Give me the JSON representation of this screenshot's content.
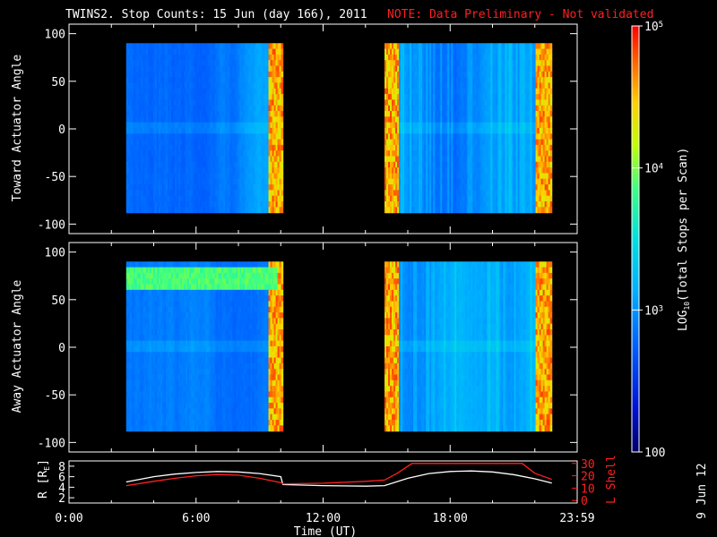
{
  "title": "TWINS2. Stop Counts: 15 Jun (day 166), 2011",
  "note": "NOTE: Data Preliminary - Not validated",
  "date_stamp": "9 Jun 12",
  "colors": {
    "note": "#ff2020",
    "background": "#000000",
    "axes": "#ffffff",
    "r_line": "#ffffff",
    "lshell_line": "#ff2020"
  },
  "chart_data": [
    {
      "type": "heatmap",
      "name": "toward",
      "ylabel": "Toward Actuator Angle",
      "ylim": [
        -110,
        110
      ],
      "yticks": [
        "100",
        "50",
        "0",
        "-50",
        "-100"
      ],
      "ytick_values": [
        100,
        50,
        0,
        -50,
        -100
      ],
      "xlim_hours": [
        0,
        24
      ],
      "y_range": [
        -88,
        90
      ],
      "data_intervals_hours": [
        [
          2.7,
          10.1
        ],
        [
          14.9,
          22.8
        ]
      ],
      "features": [
        {
          "from_h": 9.4,
          "to_h": 10.1,
          "level": "high"
        },
        {
          "from_h": 14.9,
          "to_h": 15.5,
          "level": "high"
        },
        {
          "from_h": 22.0,
          "to_h": 22.8,
          "level": "high"
        }
      ]
    },
    {
      "type": "heatmap",
      "name": "away",
      "ylabel": "Away Actuator Angle",
      "ylim": [
        -110,
        110
      ],
      "yticks": [
        "100",
        "50",
        "0",
        "-50",
        "-100"
      ],
      "ytick_values": [
        100,
        50,
        0,
        -50,
        -100
      ],
      "xlim_hours": [
        0,
        24
      ],
      "y_range": [
        -88,
        90
      ],
      "data_intervals_hours": [
        [
          2.7,
          10.1
        ],
        [
          14.9,
          22.8
        ]
      ],
      "features": [
        {
          "from_h": 2.7,
          "to_h": 9.8,
          "angle_from": 62,
          "angle_to": 85,
          "level": "elevated"
        },
        {
          "from_h": 9.4,
          "to_h": 10.1,
          "level": "high"
        },
        {
          "from_h": 14.9,
          "to_h": 15.5,
          "level": "high"
        },
        {
          "from_h": 22.0,
          "to_h": 22.8,
          "level": "high"
        }
      ]
    },
    {
      "type": "line",
      "name": "orbit",
      "xlabel": "Time (UT)",
      "xticks": [
        "0:00",
        "6:00",
        "12:00",
        "18:00",
        "23:59"
      ],
      "xtick_hours": [
        0,
        6,
        12,
        18,
        24
      ],
      "left_axis": {
        "label": "R [RE]",
        "label_main": "R [R",
        "label_sub": "E",
        "label_end": "]",
        "ticks": [
          "8",
          "6",
          "4",
          "2"
        ],
        "tick_values": [
          8,
          6,
          4,
          2
        ],
        "ylim": [
          1,
          9
        ]
      },
      "right_axis": {
        "label": "L Shell",
        "ticks": [
          "30",
          "20",
          "10",
          "0"
        ],
        "tick_values": [
          30,
          20,
          10,
          0
        ],
        "ylim": [
          -2,
          32
        ]
      },
      "series": [
        {
          "axis": "left",
          "color": "#ffffff",
          "x": [
            2.7,
            4,
            5,
            6,
            7,
            8,
            9,
            10,
            10.1,
            12,
            14,
            14.9,
            16,
            17,
            18,
            19,
            20,
            21,
            22,
            22.8
          ],
          "y": [
            5.0,
            6.0,
            6.5,
            6.8,
            7.0,
            6.9,
            6.6,
            6.0,
            4.5,
            4.3,
            4.2,
            4.3,
            5.7,
            6.6,
            7.0,
            7.1,
            6.9,
            6.4,
            5.6,
            4.8
          ]
        },
        {
          "axis": "right",
          "color": "#ff2020",
          "x": [
            2.7,
            4,
            5,
            6,
            7,
            8,
            9,
            10,
            10.1,
            12,
            14,
            14.9,
            15.5,
            16.2,
            21.4,
            22.0,
            22.8
          ],
          "y": [
            12,
            15.5,
            18,
            20,
            21,
            20.5,
            18,
            14.5,
            13.5,
            14,
            15.5,
            16.5,
            22,
            30,
            30,
            22,
            17
          ]
        }
      ]
    },
    {
      "type": "heatmap",
      "name": "colorbar",
      "label": "LOG10(Total Stops per Scan)",
      "label_main": "LOG",
      "label_sub": "10",
      "label_end": "(Total Stops per Scan)",
      "range": [
        100,
        100000
      ],
      "scale": "log",
      "ticks": [
        {
          "value": 100000,
          "base": "10",
          "exp": "5"
        },
        {
          "value": 10000,
          "base": "10",
          "exp": "4"
        },
        {
          "value": 1000,
          "base": "10",
          "exp": "3"
        },
        {
          "value": 100,
          "base": "100",
          "exp": ""
        }
      ]
    }
  ]
}
